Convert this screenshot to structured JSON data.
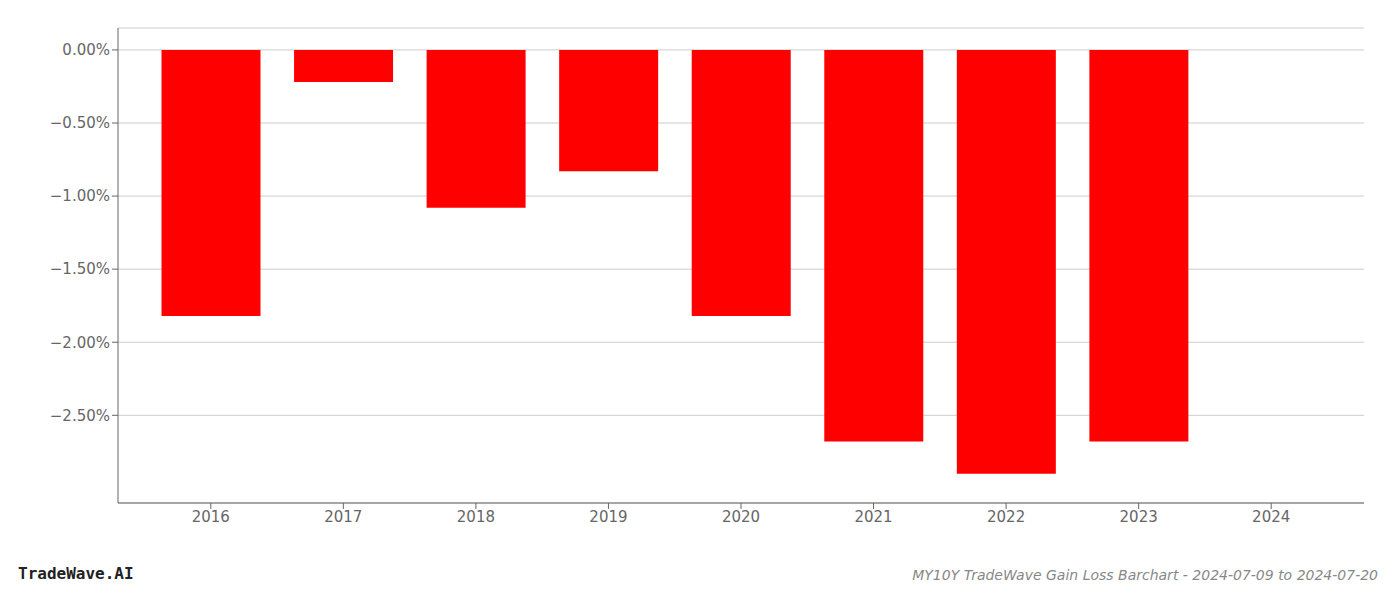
{
  "chart_data": {
    "type": "bar",
    "title": "MY10Y TradeWave Gain Loss Barchart - 2024-07-09 to 2024-07-20",
    "annotations": [
      "TradeWave.AI"
    ],
    "x": [
      2016,
      2017,
      2018,
      2019,
      2020,
      2021,
      2022,
      2023
    ],
    "values": [
      -1.82,
      -0.22,
      -1.08,
      -0.83,
      -1.82,
      -2.68,
      -2.9,
      -2.68
    ],
    "color": "#ff0000",
    "xlim": [
      2015.3,
      2024.7
    ],
    "xticks": [
      2016,
      2017,
      2018,
      2019,
      2020,
      2021,
      2022,
      2023,
      2024
    ],
    "ylim": [
      -3.1,
      0.15
    ],
    "yticks": [
      {
        "value": 0.0,
        "label": "0.00%"
      },
      {
        "value": -0.5,
        "label": "−0.50%"
      },
      {
        "value": -1.0,
        "label": "−1.00%"
      },
      {
        "value": -1.5,
        "label": "−1.50%"
      },
      {
        "value": -2.0,
        "label": "−2.00%"
      },
      {
        "value": -2.5,
        "label": "−2.50%"
      }
    ],
    "grid": true
  }
}
